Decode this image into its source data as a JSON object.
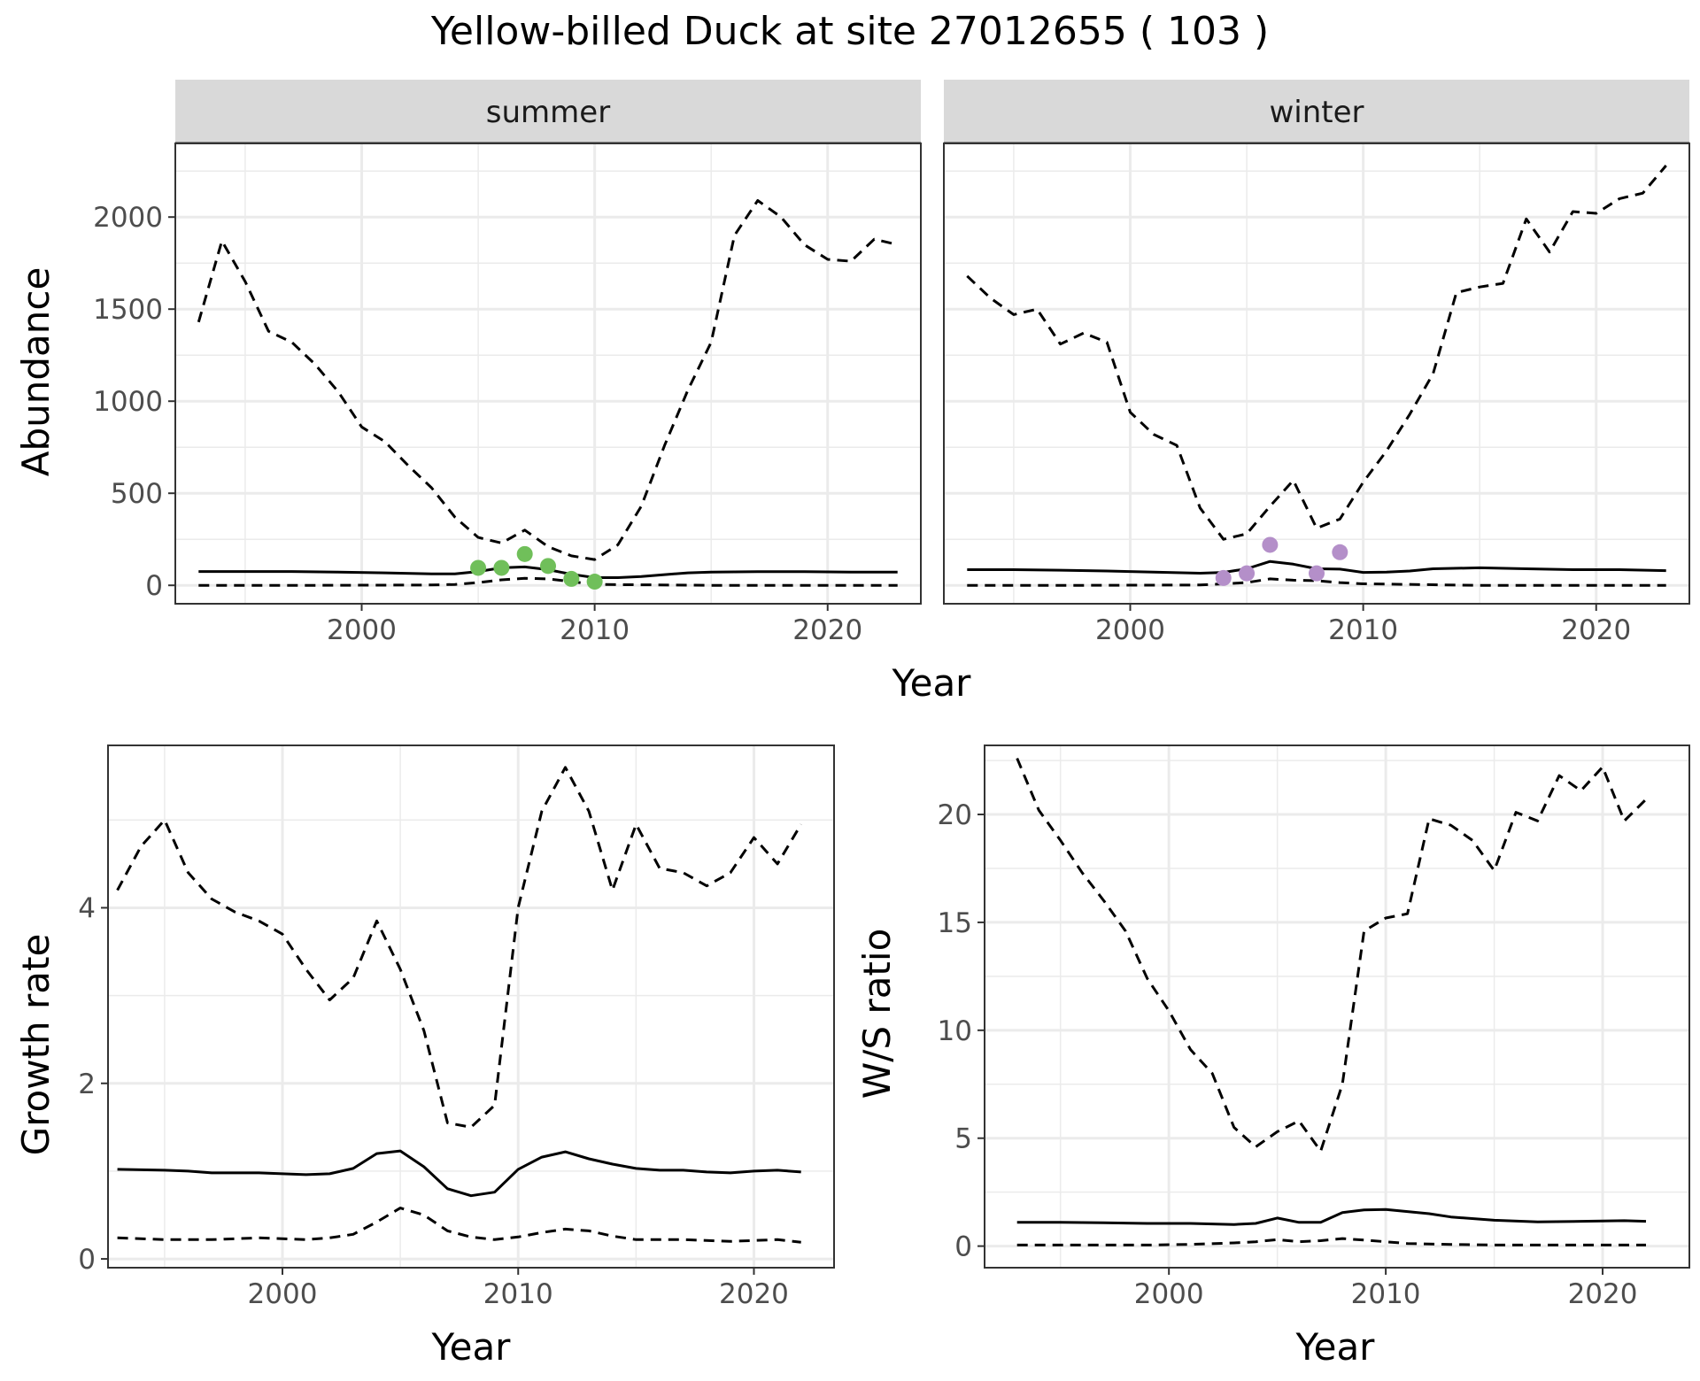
{
  "title": "Yellow-billed Duck at site 27012655 ( 103 )",
  "colors": {
    "summer_points": "#70bf5a",
    "winter_points": "#b48fc9",
    "line": "#000000",
    "strip_fill": "#d9d9d9",
    "grid": "#ebebeb"
  },
  "chart_data": [
    {
      "id": "abundance_summer",
      "type": "line",
      "facet": "summer",
      "title": "",
      "xlabel": "",
      "ylabel": "Abundance",
      "xlim": [
        1992,
        2024
      ],
      "ylim": [
        -100,
        2400
      ],
      "xticks": [
        2000,
        2010,
        2020
      ],
      "yticks": [
        0,
        500,
        1000,
        1500,
        2000
      ],
      "grid": true,
      "series": [
        {
          "role": "estimate",
          "style": "solid",
          "x": [
            1993,
            1995,
            1997,
            1999,
            2001,
            2003,
            2004,
            2005,
            2006,
            2007,
            2008,
            2009,
            2010,
            2011,
            2012,
            2013,
            2014,
            2015,
            2017,
            2019,
            2021,
            2023
          ],
          "y": [
            75,
            75,
            75,
            72,
            68,
            62,
            62,
            75,
            95,
            100,
            85,
            60,
            42,
            42,
            48,
            58,
            68,
            72,
            74,
            74,
            72,
            72
          ]
        },
        {
          "role": "upper",
          "style": "dashed",
          "x": [
            1993,
            1994,
            1995,
            1996,
            1997,
            1998,
            1999,
            2000,
            2001,
            2002,
            2003,
            2004,
            2005,
            2006,
            2007,
            2008,
            2009,
            2010,
            2011,
            2012,
            2013,
            2014,
            2015,
            2016,
            2017,
            2018,
            2019,
            2020,
            2021,
            2022,
            2023
          ],
          "y": [
            1430,
            1870,
            1650,
            1380,
            1320,
            1200,
            1050,
            860,
            780,
            650,
            530,
            370,
            260,
            230,
            300,
            210,
            160,
            140,
            220,
            430,
            760,
            1060,
            1320,
            1900,
            2090,
            2000,
            1850,
            1770,
            1760,
            1880,
            1850
          ]
        },
        {
          "role": "lower",
          "style": "dashed",
          "x": [
            1993,
            1998,
            2003,
            2004,
            2005,
            2006,
            2007,
            2008,
            2009,
            2010,
            2015,
            2020,
            2023
          ],
          "y": [
            0,
            0,
            2,
            5,
            15,
            30,
            38,
            35,
            20,
            5,
            0,
            0,
            0
          ]
        }
      ],
      "points": {
        "x": [
          2005,
          2006,
          2007,
          2008,
          2009,
          2010
        ],
        "y": [
          95,
          95,
          170,
          105,
          35,
          20
        ]
      }
    },
    {
      "id": "abundance_winter",
      "type": "line",
      "facet": "winter",
      "title": "",
      "xlabel": "",
      "ylabel": "",
      "xlim": [
        1992,
        2024
      ],
      "ylim": [
        -100,
        2400
      ],
      "xticks": [
        2000,
        2010,
        2020
      ],
      "yticks": [
        0,
        500,
        1000,
        1500,
        2000
      ],
      "grid": true,
      "series": [
        {
          "role": "estimate",
          "style": "solid",
          "x": [
            1993,
            1995,
            1997,
            1999,
            2001,
            2003,
            2004,
            2005,
            2006,
            2007,
            2008,
            2009,
            2010,
            2011,
            2012,
            2013,
            2015,
            2017,
            2019,
            2021,
            2023
          ],
          "y": [
            85,
            85,
            82,
            78,
            72,
            66,
            70,
            90,
            130,
            115,
            90,
            88,
            70,
            72,
            78,
            90,
            95,
            90,
            85,
            85,
            80
          ]
        },
        {
          "role": "upper",
          "style": "dashed",
          "x": [
            1993,
            1994,
            1995,
            1996,
            1997,
            1998,
            1999,
            2000,
            2001,
            2002,
            2003,
            2004,
            2005,
            2006,
            2007,
            2008,
            2009,
            2010,
            2011,
            2012,
            2013,
            2014,
            2015,
            2016,
            2017,
            2018,
            2019,
            2020,
            2021,
            2022,
            2023
          ],
          "y": [
            1680,
            1560,
            1470,
            1500,
            1310,
            1370,
            1320,
            940,
            820,
            760,
            420,
            250,
            280,
            430,
            570,
            310,
            360,
            560,
            730,
            930,
            1150,
            1590,
            1620,
            1640,
            1990,
            1810,
            2030,
            2020,
            2100,
            2130,
            2280
          ]
        },
        {
          "role": "lower",
          "style": "dashed",
          "x": [
            1993,
            1998,
            2003,
            2004,
            2005,
            2006,
            2007,
            2008,
            2009,
            2010,
            2015,
            2020,
            2023
          ],
          "y": [
            0,
            0,
            2,
            8,
            15,
            35,
            28,
            25,
            15,
            8,
            0,
            0,
            0
          ]
        }
      ],
      "points": {
        "x": [
          2004,
          2005,
          2006,
          2008,
          2009
        ],
        "y": [
          40,
          65,
          220,
          65,
          180
        ]
      }
    },
    {
      "id": "growth_rate",
      "type": "line",
      "title": "",
      "xlabel": "Year",
      "ylabel": "Growth rate",
      "xlim": [
        1992.6,
        2023.4
      ],
      "ylim": [
        -0.1,
        5.85
      ],
      "xticks": [
        2000,
        2010,
        2020
      ],
      "yticks": [
        0,
        2,
        4
      ],
      "grid": true,
      "series": [
        {
          "role": "estimate",
          "style": "solid",
          "x": [
            1993,
            1995,
            1996,
            1997,
            1998,
            1999,
            2000,
            2001,
            2002,
            2003,
            2004,
            2005,
            2006,
            2007,
            2008,
            2009,
            2010,
            2011,
            2012,
            2013,
            2014,
            2015,
            2016,
            2017,
            2018,
            2019,
            2020,
            2021,
            2022
          ],
          "y": [
            1.02,
            1.01,
            1.0,
            0.98,
            0.98,
            0.98,
            0.97,
            0.96,
            0.97,
            1.03,
            1.2,
            1.23,
            1.05,
            0.8,
            0.72,
            0.76,
            1.02,
            1.16,
            1.22,
            1.14,
            1.08,
            1.03,
            1.01,
            1.01,
            0.99,
            0.98,
            1.0,
            1.01,
            0.99
          ]
        },
        {
          "role": "upper",
          "style": "dashed",
          "x": [
            1993,
            1994,
            1995,
            1996,
            1997,
            1998,
            1999,
            2000,
            2001,
            2002,
            2003,
            2004,
            2005,
            2006,
            2007,
            2008,
            2009,
            2010,
            2011,
            2012,
            2013,
            2014,
            2015,
            2016,
            2017,
            2018,
            2019,
            2020,
            2021,
            2022
          ],
          "y": [
            4.2,
            4.7,
            5.0,
            4.4,
            4.1,
            3.95,
            3.85,
            3.7,
            3.3,
            2.95,
            3.2,
            3.85,
            3.3,
            2.6,
            1.55,
            1.5,
            1.75,
            4.0,
            5.1,
            5.6,
            5.1,
            4.2,
            4.95,
            4.45,
            4.4,
            4.25,
            4.4,
            4.8,
            4.5,
            4.95
          ]
        },
        {
          "role": "lower",
          "style": "dashed",
          "x": [
            1993,
            1995,
            1997,
            1999,
            2001,
            2002,
            2003,
            2004,
            2005,
            2006,
            2007,
            2008,
            2009,
            2010,
            2011,
            2012,
            2013,
            2014,
            2015,
            2017,
            2019,
            2021,
            2022
          ],
          "y": [
            0.24,
            0.22,
            0.22,
            0.24,
            0.22,
            0.24,
            0.28,
            0.42,
            0.58,
            0.5,
            0.32,
            0.25,
            0.22,
            0.25,
            0.3,
            0.34,
            0.32,
            0.26,
            0.22,
            0.22,
            0.2,
            0.22,
            0.19
          ]
        }
      ]
    },
    {
      "id": "ws_ratio",
      "type": "line",
      "title": "",
      "xlabel": "Year",
      "ylabel": "W/S ratio",
      "xlim": [
        1991.5,
        2024
      ],
      "ylim": [
        -1,
        23.2
      ],
      "xticks": [
        2000,
        2010,
        2020
      ],
      "yticks": [
        0,
        5,
        10,
        15,
        20
      ],
      "grid": true,
      "series": [
        {
          "role": "estimate",
          "style": "solid",
          "x": [
            1993,
            1995,
            1997,
            1999,
            2001,
            2003,
            2004,
            2005,
            2006,
            2007,
            2008,
            2009,
            2010,
            2011,
            2012,
            2013,
            2015,
            2017,
            2019,
            2021,
            2022
          ],
          "y": [
            1.1,
            1.1,
            1.08,
            1.05,
            1.05,
            1.0,
            1.05,
            1.3,
            1.1,
            1.1,
            1.55,
            1.68,
            1.7,
            1.6,
            1.5,
            1.35,
            1.2,
            1.12,
            1.15,
            1.18,
            1.15
          ]
        },
        {
          "role": "upper",
          "style": "dashed",
          "x": [
            1993,
            1994,
            1995,
            1996,
            1997,
            1998,
            1999,
            2000,
            2001,
            2002,
            2003,
            2004,
            2005,
            2006,
            2007,
            2008,
            2009,
            2010,
            2011,
            2012,
            2013,
            2014,
            2015,
            2016,
            2017,
            2018,
            2019,
            2020,
            2021,
            2022
          ],
          "y": [
            22.6,
            20.2,
            18.8,
            17.3,
            16.0,
            14.6,
            12.4,
            10.9,
            9.1,
            8.0,
            5.5,
            4.6,
            5.3,
            5.8,
            4.4,
            7.5,
            14.6,
            15.2,
            15.4,
            19.8,
            19.5,
            18.8,
            17.4,
            20.1,
            19.7,
            21.8,
            21.1,
            22.2,
            19.7,
            20.7
          ]
        },
        {
          "role": "lower",
          "style": "dashed",
          "x": [
            1993,
            1995,
            1997,
            1999,
            2001,
            2003,
            2004,
            2005,
            2006,
            2007,
            2008,
            2009,
            2010,
            2011,
            2013,
            2015,
            2017,
            2019,
            2022
          ],
          "y": [
            0.05,
            0.05,
            0.05,
            0.05,
            0.08,
            0.15,
            0.2,
            0.3,
            0.2,
            0.25,
            0.35,
            0.28,
            0.2,
            0.12,
            0.08,
            0.05,
            0.05,
            0.05,
            0.05
          ]
        }
      ]
    }
  ],
  "panels_text": {
    "abundance_summer": {
      "strip": "summer",
      "ylabel": "Abundance"
    },
    "abundance_winter": {
      "strip": "winter"
    },
    "abundance_xlabel": "Year",
    "growth_rate": {
      "xlabel": "Year",
      "ylabel": "Growth rate"
    },
    "ws_ratio": {
      "xlabel": "Year",
      "ylabel": "W/S ratio"
    }
  }
}
